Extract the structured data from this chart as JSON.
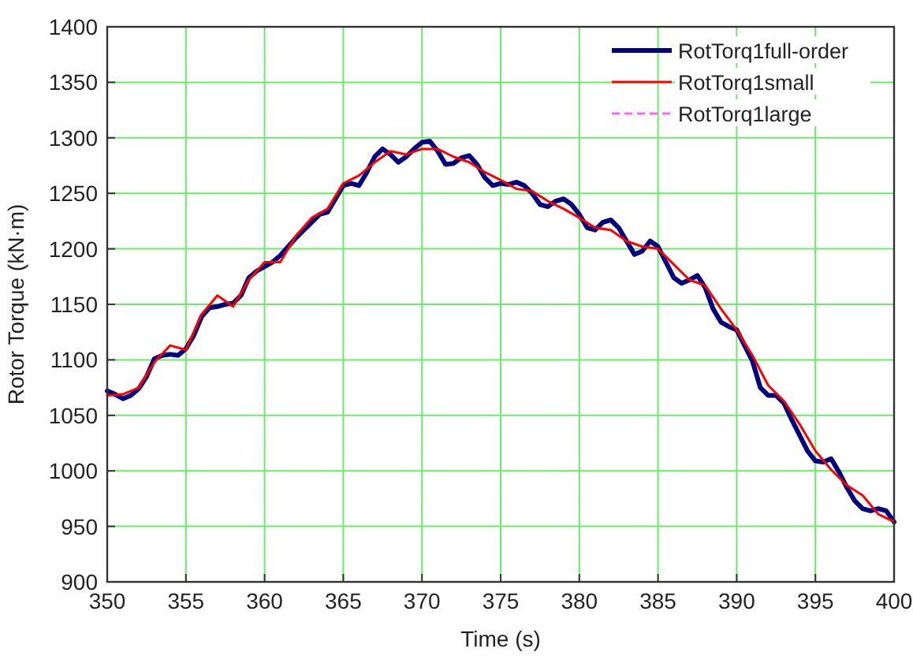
{
  "chart_data": {
    "type": "line",
    "xlabel": "Time (s)",
    "ylabel": "Rotor Torque (kN·m)",
    "xlim": [
      350,
      400
    ],
    "xticks": [
      350,
      355,
      360,
      365,
      370,
      375,
      380,
      385,
      390,
      395,
      400
    ],
    "ylim": [
      900,
      1400
    ],
    "yticks": [
      900,
      950,
      1000,
      1050,
      1100,
      1150,
      1200,
      1250,
      1300,
      1350,
      1400
    ],
    "grid": true,
    "legend": "top right",
    "series": [
      {
        "name": "RotTorq1full-order",
        "color": "#000080",
        "line_style": "solid",
        "x": [
          350,
          350.5,
          351,
          351.5,
          352,
          352.5,
          353,
          353.5,
          354,
          354.5,
          355,
          355.5,
          356,
          356.5,
          357,
          357.5,
          358,
          358.5,
          359,
          359.5,
          360,
          360.5,
          361,
          361.5,
          362,
          362.5,
          363,
          363.5,
          364,
          364.5,
          365,
          365.5,
          366,
          366.5,
          367,
          367.5,
          368,
          368.5,
          369,
          369.5,
          370,
          370.5,
          371,
          371.5,
          372,
          372.5,
          373,
          373.5,
          374,
          374.5,
          375,
          375.5,
          376,
          376.5,
          377,
          377.5,
          378,
          378.5,
          379,
          379.5,
          380,
          380.5,
          381,
          381.5,
          382,
          382.5,
          383,
          383.5,
          384,
          384.5,
          385,
          385.5,
          386,
          386.5,
          387,
          387.5,
          388,
          388.5,
          389,
          389.5,
          390,
          390.5,
          391,
          391.5,
          392,
          392.5,
          393,
          393.5,
          394,
          394.5,
          395,
          395.5,
          396,
          396.5,
          397,
          397.5,
          398,
          398.5,
          399,
          399.5,
          400
        ],
        "values": [
          1072,
          1069,
          1065,
          1068,
          1074,
          1085,
          1101,
          1104,
          1105,
          1104,
          1110,
          1122,
          1139,
          1147,
          1148,
          1150,
          1151,
          1158,
          1174,
          1180,
          1184,
          1188,
          1194,
          1202,
          1210,
          1217,
          1224,
          1231,
          1233,
          1245,
          1257,
          1259,
          1257,
          1269,
          1283,
          1290,
          1285,
          1278,
          1283,
          1290,
          1296,
          1297,
          1288,
          1276,
          1277,
          1282,
          1284,
          1276,
          1264,
          1257,
          1259,
          1258,
          1260,
          1257,
          1250,
          1240,
          1238,
          1243,
          1245,
          1240,
          1231,
          1219,
          1217,
          1224,
          1226,
          1219,
          1207,
          1195,
          1198,
          1207,
          1202,
          1188,
          1174,
          1169,
          1172,
          1176,
          1165,
          1146,
          1134,
          1130,
          1127,
          1113,
          1099,
          1075,
          1068,
          1068,
          1061,
          1046,
          1032,
          1018,
          1009,
          1008,
          1011,
          999,
          985,
          973,
          966,
          964,
          966,
          964,
          954
        ]
      },
      {
        "name": "RotTorq1small",
        "color": "#ff0000",
        "line_style": "solid",
        "x": [
          350,
          351,
          352,
          353,
          354,
          355,
          356,
          357,
          358,
          359,
          360,
          361,
          362,
          363,
          364,
          365,
          366,
          367,
          368,
          369,
          370,
          371,
          372,
          373,
          374,
          375,
          376,
          377,
          378,
          379,
          380,
          381,
          382,
          383,
          384,
          385,
          386,
          387,
          388,
          389,
          390,
          391,
          392,
          393,
          394,
          395,
          396,
          397,
          398,
          399,
          400
        ],
        "values": [
          1068,
          1069,
          1075,
          1098,
          1113,
          1109,
          1141,
          1158,
          1148,
          1172,
          1188,
          1188,
          1212,
          1228,
          1236,
          1259,
          1266,
          1278,
          1288,
          1285,
          1290,
          1290,
          1283,
          1278,
          1269,
          1262,
          1254,
          1252,
          1243,
          1236,
          1228,
          1219,
          1217,
          1207,
          1202,
          1200,
          1186,
          1172,
          1167,
          1146,
          1127,
          1104,
          1077,
          1063,
          1042,
          1018,
          1001,
          987,
          978,
          961,
          954
        ]
      },
      {
        "name": "RotTorq1large",
        "color": "#ff66ff",
        "line_style": "dashed"
      }
    ]
  }
}
